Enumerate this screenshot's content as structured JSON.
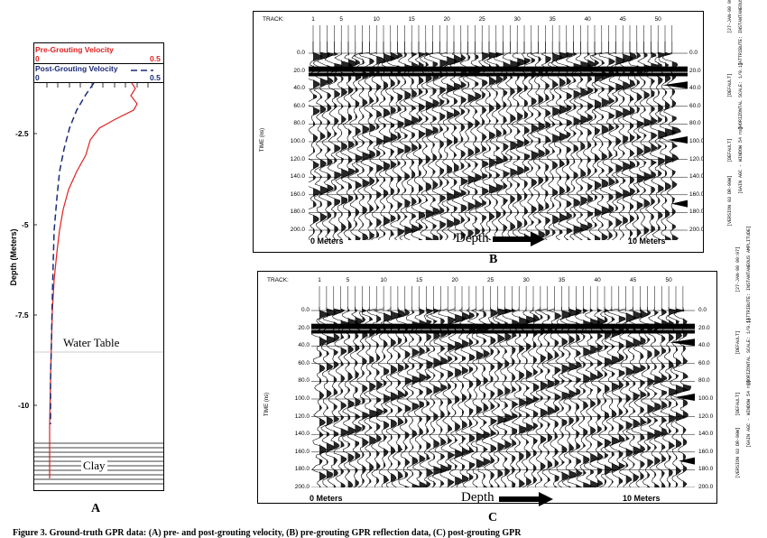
{
  "panel_a": {
    "letter": "A",
    "pre_label": "Pre-Grouting Velocity",
    "pre_min": "0",
    "pre_max": "0.5",
    "post_label": "Post-Grouting Velocity",
    "post_min": "0",
    "post_max": "0.5",
    "ylabel": "Depth (Meters)",
    "y_ticks": [
      "-2.5",
      "-5",
      "-7.5",
      "-10"
    ],
    "water_table": "Water Table",
    "clay": "Clay",
    "pre_color": "#e02020",
    "post_color": "#1a2a7a"
  },
  "panel_b": {
    "letter": "B",
    "track_label": "TRACK:",
    "track_ticks": [
      "1",
      "5",
      "10",
      "15",
      "20",
      "25",
      "30",
      "35",
      "40",
      "45",
      "50"
    ],
    "time_label": "TIME (ns)",
    "left_ticks": [
      "0.0",
      "20.0",
      "40.0",
      "60.0",
      "80.0",
      "100.0",
      "120.0",
      "140.0",
      "160.0",
      "180.0",
      "200.0"
    ],
    "right_ticks": [
      "0.0",
      "20.0",
      "40.0",
      "60.0",
      "80.0",
      "100.0",
      "120.0",
      "140.0",
      "160.0",
      "180.0",
      "200.0"
    ],
    "start_label": "0 Meters",
    "end_label": "10 Meters",
    "depth_label": "Depth",
    "side_text": [
      "[VERSION 03 DR-90W]",
      "[GAIN AGC - WINDOW 54 ns]",
      "[DEFAULT]",
      "[HORIZONTAL SCALE: 1/0.1]",
      "[DEFAULT]",
      "[ATTRIBUTE: INSTANTANEOUS AMPLITUDE]",
      "[27-JAN-98 09:05]"
    ]
  },
  "panel_c": {
    "letter": "C",
    "track_label": "TRACK:",
    "track_ticks": [
      "1",
      "5",
      "10",
      "15",
      "20",
      "25",
      "30",
      "35",
      "40",
      "45",
      "50"
    ],
    "time_label": "TIME (ns)",
    "left_ticks": [
      "0.0",
      "20.0",
      "40.0",
      "60.0",
      "80.0",
      "100.0",
      "120.0",
      "140.0",
      "160.0",
      "180.0",
      "200.0"
    ],
    "right_ticks": [
      "0.0",
      "20.0",
      "40.0",
      "60.0",
      "80.0",
      "100.0",
      "120.0",
      "140.0",
      "160.0",
      "180.0",
      "200.0"
    ],
    "start_label": "0 Meters",
    "end_label": "10 Meters",
    "depth_label": "Depth",
    "side_text": [
      "[VERSION 03 DR-90W]",
      "[GAIN AGC - WINDOW 54 ns]",
      "[DEFAULT]",
      "[HORIZONTAL SCALE: 1/0.1]",
      "[DEFAULT]",
      "[ATTRIBUTE: INSTANTANEOUS AMPLITUDE]",
      "[27-JAN-98 09:07]"
    ]
  },
  "caption": "Figure 3.    Ground-truth GPR data: (A) pre- and post-grouting velocity, (B) pre-grouting GPR reflection data, (C) post-grouting GPR"
}
